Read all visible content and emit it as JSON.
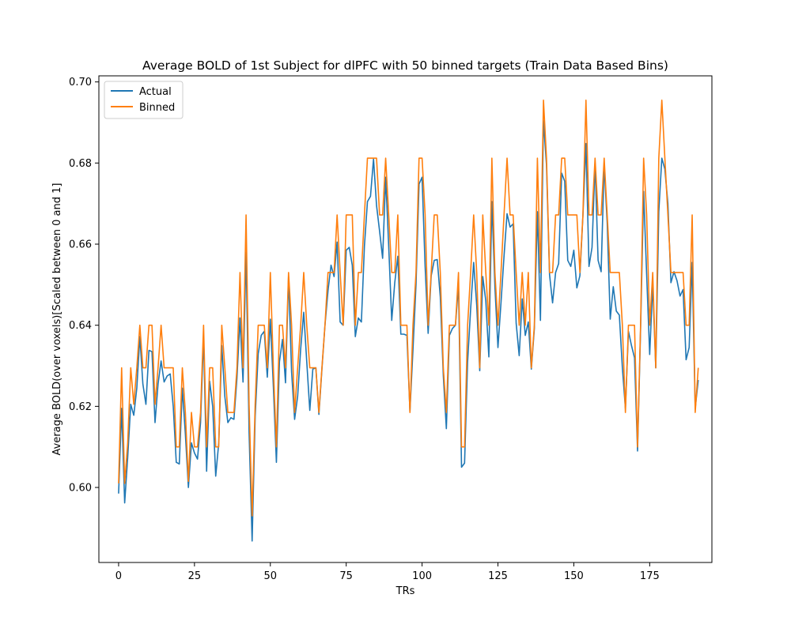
{
  "chart_data": {
    "type": "line",
    "title": "Average BOLD of 1st Subject for dlPFC with 50 binned targets (Train Data Based Bins)",
    "xlabel": "TRs",
    "ylabel": "Average BOLD(over voxels)[Scaled between 0 and 1]",
    "xlim": [
      -6.5,
      195.5
    ],
    "ylim": [
      0.5815,
      0.7015
    ],
    "x_ticks": [
      0,
      25,
      50,
      75,
      100,
      125,
      150,
      175
    ],
    "x_tick_labels": [
      "0",
      "25",
      "50",
      "75",
      "100",
      "125",
      "150",
      "175"
    ],
    "y_ticks": [
      0.6,
      0.62,
      0.64,
      0.66,
      0.68,
      0.7
    ],
    "y_tick_labels": [
      "0.60",
      "0.62",
      "0.64",
      "0.66",
      "0.68",
      "0.70"
    ],
    "grid": false,
    "legend_position": "top-left",
    "x_start": 0,
    "series": [
      {
        "name": "Actual",
        "color": "#1f77b4",
        "values": [
          0.5985,
          0.6195,
          0.5962,
          0.6075,
          0.6205,
          0.6178,
          0.6245,
          0.6372,
          0.6255,
          0.6205,
          0.6338,
          0.6335,
          0.616,
          0.6255,
          0.6312,
          0.626,
          0.6275,
          0.628,
          0.62,
          0.6062,
          0.6058,
          0.6245,
          0.6132,
          0.6,
          0.611,
          0.6085,
          0.607,
          0.616,
          0.6372,
          0.604,
          0.6262,
          0.62,
          0.6028,
          0.611,
          0.635,
          0.6225,
          0.616,
          0.6172,
          0.6168,
          0.627,
          0.6418,
          0.626,
          0.658,
          0.6135,
          0.5868,
          0.6175,
          0.633,
          0.6375,
          0.6385,
          0.6272,
          0.6415,
          0.6248,
          0.6062,
          0.631,
          0.6365,
          0.6258,
          0.652,
          0.6285,
          0.6168,
          0.6225,
          0.6342,
          0.6432,
          0.631,
          0.619,
          0.6292,
          0.6295,
          0.618,
          0.6292,
          0.64,
          0.6485,
          0.6548,
          0.652,
          0.6605,
          0.6408,
          0.64,
          0.6585,
          0.6592,
          0.6548,
          0.6372,
          0.6418,
          0.6408,
          0.6595,
          0.6705,
          0.6718,
          0.681,
          0.6695,
          0.6632,
          0.6565,
          0.6765,
          0.6595,
          0.6412,
          0.6505,
          0.657,
          0.6378,
          0.6378,
          0.6375,
          0.6188,
          0.634,
          0.65,
          0.6748,
          0.6765,
          0.6545,
          0.638,
          0.6522,
          0.656,
          0.6562,
          0.647,
          0.6275,
          0.6145,
          0.6375,
          0.6392,
          0.64,
          0.65,
          0.605,
          0.606,
          0.631,
          0.644,
          0.6555,
          0.645,
          0.6288,
          0.652,
          0.646,
          0.6322,
          0.6705,
          0.6495,
          0.6345,
          0.6455,
          0.657,
          0.6675,
          0.6642,
          0.665,
          0.6405,
          0.6325,
          0.6465,
          0.6375,
          0.6408,
          0.6292,
          0.6392,
          0.668,
          0.6412,
          0.6905,
          0.6795,
          0.6525,
          0.6455,
          0.653,
          0.6552,
          0.6775,
          0.6755,
          0.656,
          0.6545,
          0.6585,
          0.6492,
          0.6522,
          0.667,
          0.6848,
          0.6545,
          0.6592,
          0.68,
          0.656,
          0.6532,
          0.6795,
          0.6652,
          0.6415,
          0.6495,
          0.6435,
          0.6425,
          0.6295,
          0.6195,
          0.6385,
          0.635,
          0.632,
          0.609,
          0.639,
          0.673,
          0.6525,
          0.6328,
          0.65,
          0.6295,
          0.668,
          0.6812,
          0.6785,
          0.67,
          0.6505,
          0.6532,
          0.651,
          0.6472,
          0.6488,
          0.6315,
          0.6345,
          0.6555,
          0.6195,
          0.6265
        ]
      },
      {
        "name": "Binned",
        "color": "#ff7f0e",
        "values": [
          0.601,
          0.6295,
          0.601,
          0.611,
          0.6295,
          0.6205,
          0.6295,
          0.64,
          0.6295,
          0.6295,
          0.64,
          0.64,
          0.6205,
          0.6295,
          0.64,
          0.6295,
          0.6295,
          0.6295,
          0.6295,
          0.61,
          0.61,
          0.6295,
          0.6185,
          0.6015,
          0.6185,
          0.61,
          0.61,
          0.6185,
          0.64,
          0.61,
          0.6295,
          0.6295,
          0.61,
          0.61,
          0.64,
          0.6295,
          0.6185,
          0.6185,
          0.6185,
          0.6295,
          0.653,
          0.6295,
          0.6672,
          0.6205,
          0.593,
          0.6205,
          0.64,
          0.64,
          0.64,
          0.6295,
          0.653,
          0.6295,
          0.61,
          0.64,
          0.64,
          0.6295,
          0.653,
          0.64,
          0.6185,
          0.6295,
          0.64,
          0.653,
          0.64,
          0.6295,
          0.6295,
          0.6295,
          0.6185,
          0.6295,
          0.64,
          0.653,
          0.653,
          0.653,
          0.6672,
          0.653,
          0.64,
          0.6672,
          0.6672,
          0.6672,
          0.64,
          0.653,
          0.653,
          0.6672,
          0.6812,
          0.6812,
          0.6812,
          0.6812,
          0.6672,
          0.6672,
          0.6812,
          0.6672,
          0.653,
          0.653,
          0.6672,
          0.64,
          0.64,
          0.64,
          0.6185,
          0.64,
          0.653,
          0.6812,
          0.6812,
          0.6672,
          0.64,
          0.653,
          0.6672,
          0.6672,
          0.653,
          0.6295,
          0.6185,
          0.64,
          0.64,
          0.64,
          0.653,
          0.61,
          0.61,
          0.64,
          0.653,
          0.6672,
          0.653,
          0.6295,
          0.6672,
          0.653,
          0.64,
          0.6812,
          0.653,
          0.64,
          0.653,
          0.6672,
          0.6812,
          0.6672,
          0.6672,
          0.653,
          0.64,
          0.653,
          0.64,
          0.653,
          0.6295,
          0.64,
          0.6812,
          0.653,
          0.6955,
          0.6812,
          0.653,
          0.653,
          0.6672,
          0.6672,
          0.6812,
          0.6812,
          0.6672,
          0.6672,
          0.6672,
          0.6672,
          0.653,
          0.6672,
          0.6955,
          0.6672,
          0.6672,
          0.6812,
          0.6672,
          0.6672,
          0.6812,
          0.6672,
          0.653,
          0.653,
          0.653,
          0.653,
          0.64,
          0.6185,
          0.64,
          0.64,
          0.64,
          0.61,
          0.64,
          0.6812,
          0.6672,
          0.64,
          0.653,
          0.6295,
          0.6812,
          0.6955,
          0.6812,
          0.6672,
          0.653,
          0.653,
          0.653,
          0.653,
          0.653,
          0.64,
          0.64,
          0.6672,
          0.6185,
          0.6295
        ]
      }
    ]
  }
}
